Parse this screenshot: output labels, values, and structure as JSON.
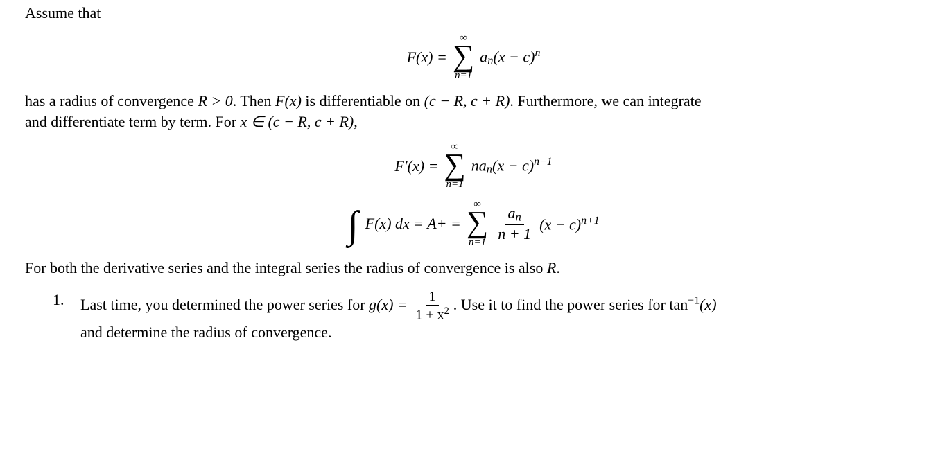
{
  "intro": {
    "assume": "Assume that"
  },
  "eq1": {
    "lhs": "F(x) =",
    "sum_top": "∞",
    "sum_bot": "n=1",
    "term_a": "a",
    "term_sub": "n",
    "term_paren": "(x − c)",
    "term_exp": "n"
  },
  "para1_a": "has a radius of convergence ",
  "para1_b": "R > 0",
  "para1_c": ". Then ",
  "para1_d": "F(x)",
  "para1_e": " is differentiable on ",
  "para1_f": "(c − R, c + R)",
  "para1_g": ". Furthermore, we can integrate",
  "para1_line2_a": "and differentiate term by term. For ",
  "para1_line2_b": "x ∈ (c − R, c + R)",
  "para1_line2_c": ",",
  "eq2": {
    "lhs": "F′(x) =",
    "sum_top": "∞",
    "sum_bot": "n=1",
    "coef": "na",
    "coef_sub": "n",
    "paren": "(x − c)",
    "exp": "n−1"
  },
  "eq3": {
    "int_pre": "F(x) dx = A+ =",
    "sum_top": "∞",
    "sum_bot": "n=1",
    "frac_num_a": "a",
    "frac_num_sub": "n",
    "frac_den": "n + 1",
    "paren": "(x − c)",
    "exp": "n+1"
  },
  "para2_a": "For both the derivative series and the integral series the radius of convergence is also ",
  "para2_b": "R",
  "para2_c": ".",
  "q1": {
    "num": "1.",
    "line1_a": "Last time, you determined the power series for ",
    "line1_b": "g(x) =",
    "frac_num": "1",
    "frac_den_a": "1 + x",
    "frac_den_exp": "2",
    "line1_c": ".  Use it to find the power series for tan",
    "line1_sup": "−1",
    "line1_d": "(x)",
    "line2": "and determine the radius of convergence."
  }
}
